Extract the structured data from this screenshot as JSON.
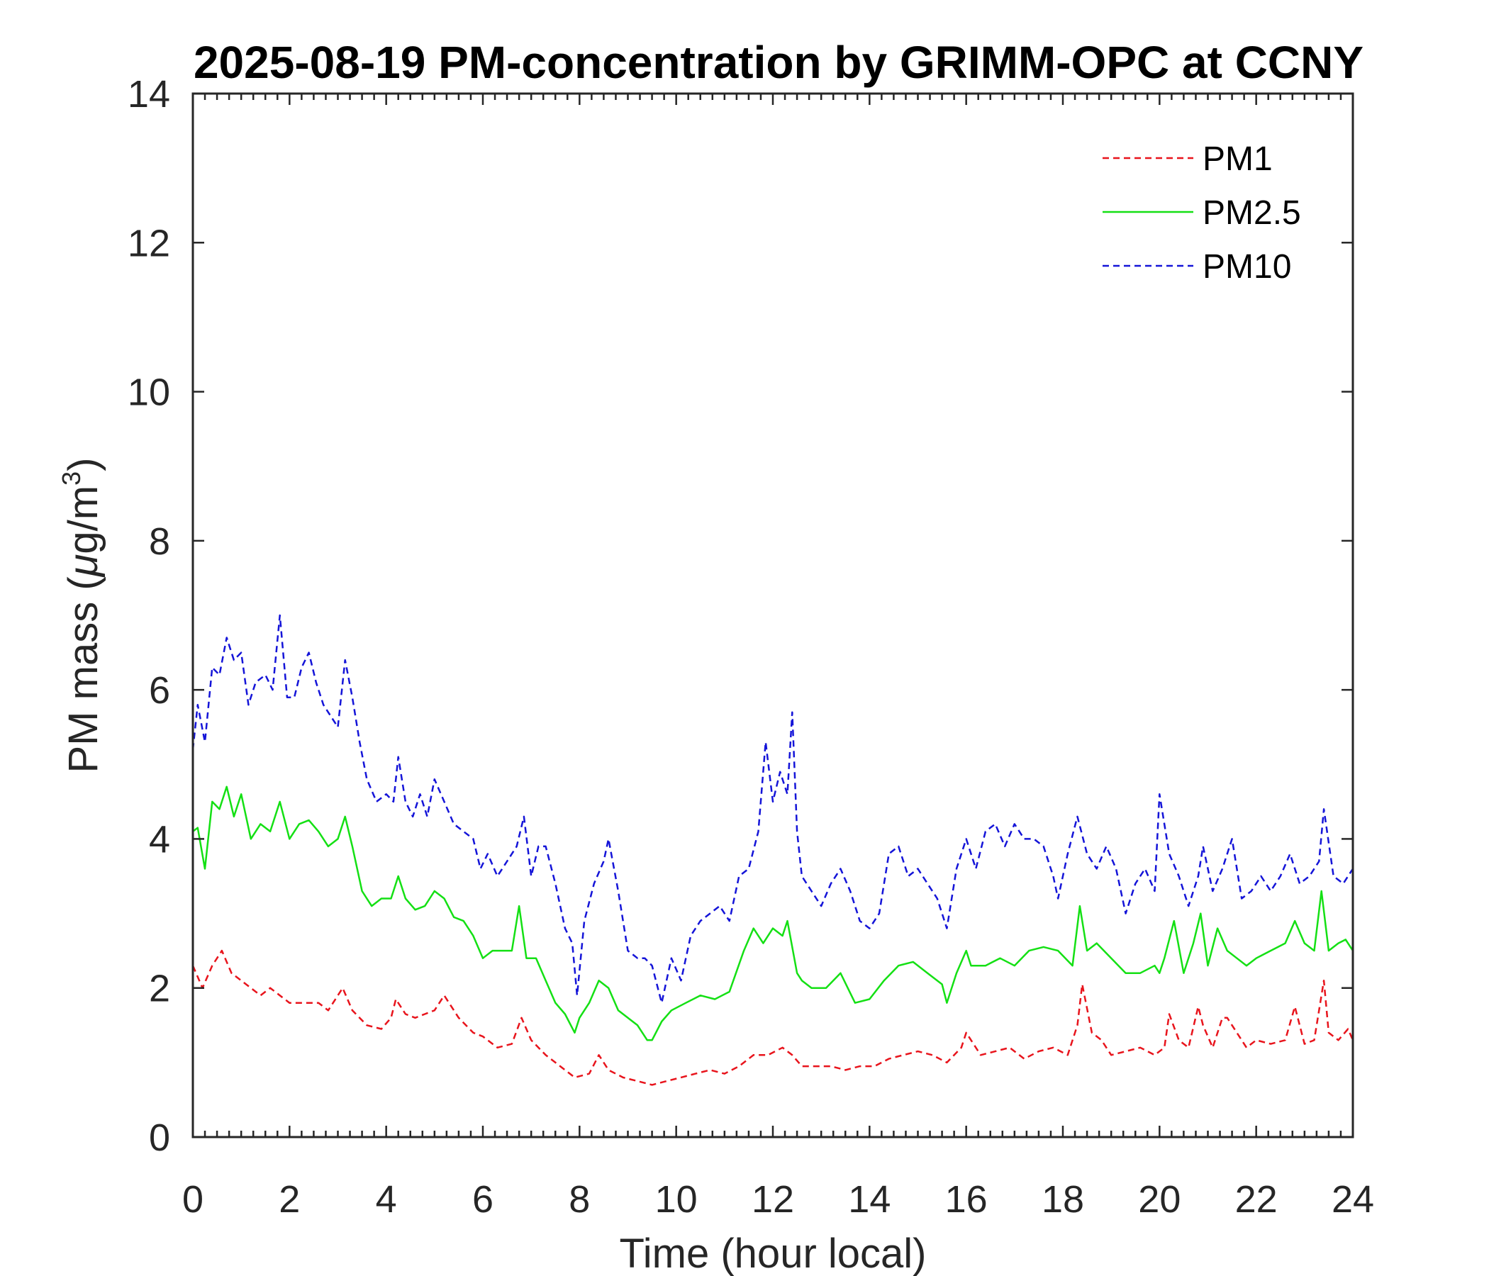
{
  "chart_data": {
    "type": "line",
    "title": "2025-08-19 PM-concentration by GRIMM-OPC at CCNY",
    "xlabel": "Time (hour local)",
    "ylabel": {
      "prefix": "PM mass (",
      "mu": "μ",
      "unit": "g/m",
      "sup": "3",
      "suffix": ")"
    },
    "xlim": [
      0,
      24
    ],
    "ylim": [
      0,
      14
    ],
    "xticks": [
      0,
      2,
      4,
      6,
      8,
      10,
      12,
      14,
      16,
      18,
      20,
      22,
      24
    ],
    "yticks": [
      0,
      2,
      4,
      6,
      8,
      10,
      12,
      14
    ],
    "legend_position": "top-right",
    "series": [
      {
        "name": "PM1",
        "color": "#e8141c",
        "dash": "dashed",
        "x": [
          0.0,
          0.2,
          0.4,
          0.6,
          0.8,
          1.0,
          1.2,
          1.4,
          1.6,
          1.8,
          2.0,
          2.2,
          2.4,
          2.6,
          2.8,
          3.0,
          3.1,
          3.3,
          3.6,
          3.9,
          4.1,
          4.2,
          4.4,
          4.6,
          4.8,
          5.0,
          5.2,
          5.5,
          5.8,
          6.0,
          6.3,
          6.6,
          6.8,
          7.0,
          7.3,
          7.6,
          7.9,
          8.2,
          8.4,
          8.6,
          8.9,
          9.2,
          9.5,
          9.8,
          10.1,
          10.4,
          10.7,
          11.0,
          11.3,
          11.6,
          11.9,
          12.2,
          12.4,
          12.6,
          12.9,
          13.2,
          13.5,
          13.8,
          14.1,
          14.4,
          14.7,
          15.0,
          15.3,
          15.6,
          15.9,
          16.0,
          16.3,
          16.6,
          16.9,
          17.2,
          17.5,
          17.8,
          18.1,
          18.3,
          18.4,
          18.6,
          18.8,
          19.0,
          19.3,
          19.6,
          19.9,
          20.1,
          20.2,
          20.4,
          20.6,
          20.8,
          20.9,
          21.1,
          21.3,
          21.4,
          21.6,
          21.8,
          22.0,
          22.3,
          22.6,
          22.8,
          23.0,
          23.2,
          23.4,
          23.5,
          23.7,
          23.9,
          24.0
        ],
        "values": [
          2.3,
          2.0,
          2.3,
          2.5,
          2.2,
          2.1,
          2.0,
          1.9,
          2.0,
          1.9,
          1.8,
          1.8,
          1.8,
          1.8,
          1.7,
          1.9,
          2.0,
          1.7,
          1.5,
          1.45,
          1.6,
          1.85,
          1.65,
          1.6,
          1.65,
          1.7,
          1.9,
          1.6,
          1.4,
          1.35,
          1.2,
          1.25,
          1.6,
          1.3,
          1.1,
          0.95,
          0.8,
          0.85,
          1.1,
          0.9,
          0.8,
          0.75,
          0.7,
          0.75,
          0.8,
          0.85,
          0.9,
          0.85,
          0.95,
          1.1,
          1.1,
          1.2,
          1.1,
          0.95,
          0.95,
          0.95,
          0.9,
          0.95,
          0.95,
          1.05,
          1.1,
          1.15,
          1.1,
          1.0,
          1.2,
          1.4,
          1.1,
          1.15,
          1.2,
          1.05,
          1.15,
          1.2,
          1.1,
          1.5,
          2.05,
          1.4,
          1.3,
          1.1,
          1.15,
          1.2,
          1.1,
          1.2,
          1.65,
          1.3,
          1.2,
          1.75,
          1.5,
          1.2,
          1.6,
          1.6,
          1.4,
          1.2,
          1.3,
          1.25,
          1.3,
          1.75,
          1.25,
          1.3,
          2.1,
          1.4,
          1.3,
          1.45,
          1.3
        ]
      },
      {
        "name": "PM2.5",
        "color": "#14e014",
        "dash": "solid",
        "x": [
          0.0,
          0.1,
          0.25,
          0.4,
          0.55,
          0.7,
          0.85,
          1.0,
          1.2,
          1.4,
          1.6,
          1.8,
          2.0,
          2.2,
          2.4,
          2.6,
          2.8,
          3.0,
          3.15,
          3.3,
          3.5,
          3.7,
          3.9,
          4.1,
          4.25,
          4.4,
          4.6,
          4.8,
          5.0,
          5.2,
          5.4,
          5.6,
          5.8,
          6.0,
          6.2,
          6.4,
          6.6,
          6.75,
          6.9,
          7.1,
          7.3,
          7.5,
          7.7,
          7.9,
          8.0,
          8.2,
          8.4,
          8.6,
          8.8,
          9.0,
          9.2,
          9.4,
          9.5,
          9.7,
          9.9,
          10.2,
          10.5,
          10.8,
          11.1,
          11.4,
          11.6,
          11.8,
          12.0,
          12.2,
          12.3,
          12.5,
          12.6,
          12.8,
          13.1,
          13.4,
          13.7,
          14.0,
          14.3,
          14.6,
          14.9,
          15.2,
          15.5,
          15.6,
          15.8,
          16.0,
          16.1,
          16.4,
          16.7,
          17.0,
          17.3,
          17.6,
          17.9,
          18.2,
          18.35,
          18.5,
          18.7,
          19.0,
          19.3,
          19.6,
          19.9,
          20.0,
          20.1,
          20.3,
          20.5,
          20.7,
          20.85,
          21.0,
          21.2,
          21.4,
          21.6,
          21.8,
          22.0,
          22.3,
          22.6,
          22.8,
          23.0,
          23.2,
          23.35,
          23.5,
          23.7,
          23.85,
          24.0
        ],
        "values": [
          4.1,
          4.15,
          3.6,
          4.5,
          4.4,
          4.7,
          4.3,
          4.6,
          4.0,
          4.2,
          4.1,
          4.5,
          4.0,
          4.2,
          4.25,
          4.1,
          3.9,
          4.0,
          4.3,
          3.9,
          3.3,
          3.1,
          3.2,
          3.2,
          3.5,
          3.2,
          3.05,
          3.1,
          3.3,
          3.2,
          2.95,
          2.9,
          2.7,
          2.4,
          2.5,
          2.5,
          2.5,
          3.1,
          2.4,
          2.4,
          2.1,
          1.8,
          1.65,
          1.4,
          1.6,
          1.8,
          2.1,
          2.0,
          1.7,
          1.6,
          1.5,
          1.3,
          1.3,
          1.55,
          1.7,
          1.8,
          1.9,
          1.85,
          1.95,
          2.5,
          2.8,
          2.6,
          2.8,
          2.7,
          2.9,
          2.2,
          2.1,
          2.0,
          2.0,
          2.2,
          1.8,
          1.85,
          2.1,
          2.3,
          2.35,
          2.2,
          2.05,
          1.8,
          2.2,
          2.5,
          2.3,
          2.3,
          2.4,
          2.3,
          2.5,
          2.55,
          2.5,
          2.3,
          3.1,
          2.5,
          2.6,
          2.4,
          2.2,
          2.2,
          2.3,
          2.2,
          2.4,
          2.9,
          2.2,
          2.6,
          3.0,
          2.3,
          2.8,
          2.5,
          2.4,
          2.3,
          2.4,
          2.5,
          2.6,
          2.9,
          2.6,
          2.5,
          3.3,
          2.5,
          2.6,
          2.65,
          2.5
        ]
      },
      {
        "name": "PM10",
        "color": "#1414d8",
        "dash": "dashed",
        "x": [
          0.0,
          0.1,
          0.25,
          0.4,
          0.55,
          0.7,
          0.85,
          1.0,
          1.15,
          1.3,
          1.5,
          1.65,
          1.8,
          1.95,
          2.1,
          2.25,
          2.4,
          2.55,
          2.7,
          2.9,
          3.0,
          3.15,
          3.3,
          3.45,
          3.6,
          3.8,
          4.0,
          4.15,
          4.25,
          4.4,
          4.55,
          4.7,
          4.85,
          5.0,
          5.2,
          5.4,
          5.6,
          5.8,
          5.95,
          6.1,
          6.3,
          6.5,
          6.7,
          6.85,
          7.0,
          7.15,
          7.3,
          7.5,
          7.7,
          7.85,
          7.95,
          8.1,
          8.3,
          8.5,
          8.6,
          8.8,
          9.0,
          9.2,
          9.35,
          9.5,
          9.7,
          9.9,
          10.1,
          10.3,
          10.5,
          10.7,
          10.9,
          11.1,
          11.3,
          11.5,
          11.7,
          11.85,
          12.0,
          12.15,
          12.3,
          12.4,
          12.5,
          12.6,
          12.8,
          13.0,
          13.2,
          13.4,
          13.6,
          13.8,
          14.0,
          14.2,
          14.4,
          14.6,
          14.8,
          15.0,
          15.2,
          15.4,
          15.6,
          15.8,
          16.0,
          16.2,
          16.4,
          16.6,
          16.8,
          17.0,
          17.2,
          17.4,
          17.6,
          17.8,
          17.9,
          18.1,
          18.3,
          18.5,
          18.7,
          18.9,
          19.1,
          19.3,
          19.5,
          19.7,
          19.9,
          20.0,
          20.2,
          20.4,
          20.6,
          20.8,
          20.9,
          21.1,
          21.3,
          21.5,
          21.7,
          21.9,
          22.1,
          22.3,
          22.5,
          22.7,
          22.9,
          23.1,
          23.3,
          23.4,
          23.6,
          23.8,
          24.0
        ],
        "values": [
          5.2,
          5.8,
          5.3,
          6.3,
          6.2,
          6.7,
          6.4,
          6.5,
          5.8,
          6.1,
          6.2,
          6.0,
          7.0,
          5.9,
          5.9,
          6.3,
          6.5,
          6.1,
          5.8,
          5.6,
          5.5,
          6.4,
          5.9,
          5.3,
          4.8,
          4.5,
          4.6,
          4.5,
          5.1,
          4.5,
          4.3,
          4.6,
          4.3,
          4.8,
          4.5,
          4.2,
          4.1,
          4.0,
          3.6,
          3.8,
          3.5,
          3.7,
          3.9,
          4.3,
          3.5,
          3.9,
          3.9,
          3.4,
          2.8,
          2.6,
          1.9,
          2.9,
          3.4,
          3.7,
          4.0,
          3.3,
          2.5,
          2.4,
          2.4,
          2.3,
          1.8,
          2.4,
          2.1,
          2.7,
          2.9,
          3.0,
          3.1,
          2.9,
          3.5,
          3.6,
          4.1,
          5.3,
          4.5,
          4.9,
          4.6,
          5.7,
          4.1,
          3.5,
          3.3,
          3.1,
          3.4,
          3.6,
          3.3,
          2.9,
          2.8,
          3.0,
          3.8,
          3.9,
          3.5,
          3.6,
          3.4,
          3.2,
          2.8,
          3.6,
          4.0,
          3.6,
          4.1,
          4.2,
          3.9,
          4.2,
          4.0,
          4.0,
          3.9,
          3.5,
          3.2,
          3.8,
          4.3,
          3.8,
          3.6,
          3.9,
          3.6,
          3.0,
          3.4,
          3.6,
          3.3,
          4.6,
          3.8,
          3.5,
          3.1,
          3.5,
          3.9,
          3.3,
          3.6,
          4.0,
          3.2,
          3.3,
          3.5,
          3.3,
          3.5,
          3.8,
          3.4,
          3.5,
          3.7,
          4.4,
          3.5,
          3.4,
          3.6
        ]
      }
    ]
  }
}
